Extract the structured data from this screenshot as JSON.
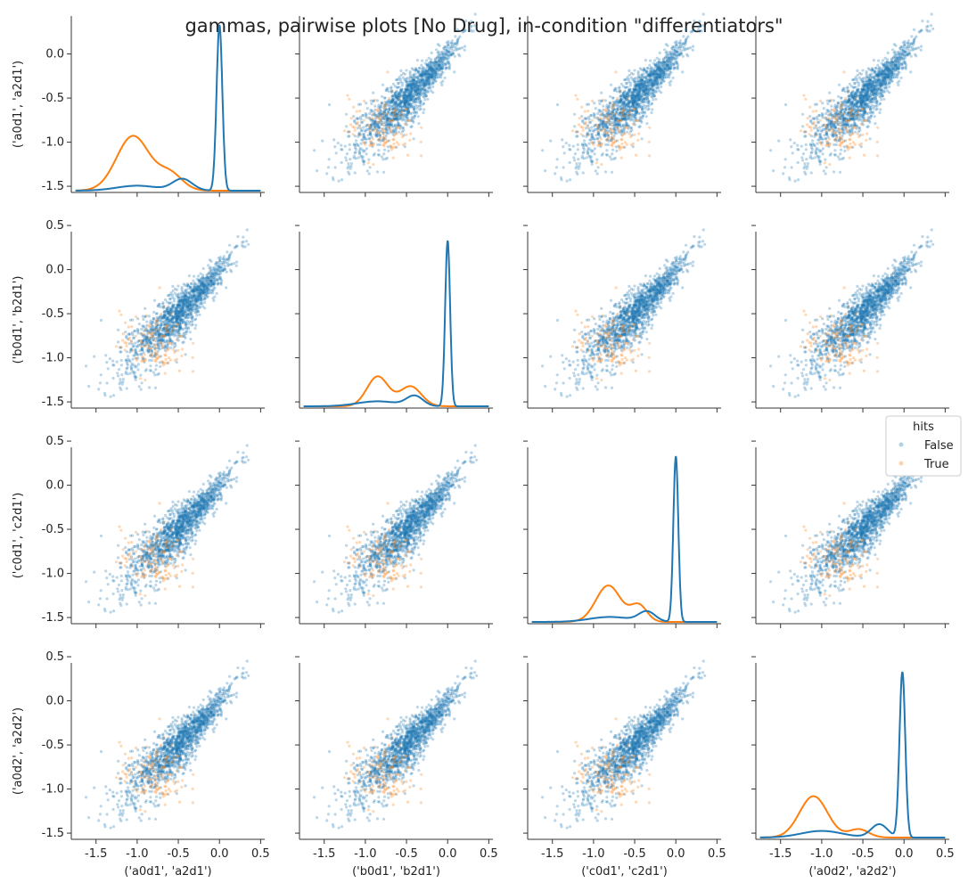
{
  "chart_data": {
    "type": "scatter",
    "title": "gammas, pairwise plots [No Drug], in-condition \"differentiators\"",
    "variables": [
      "('a0d1', 'a2d1')",
      "('b0d1', 'b2d1')",
      "('c0d1', 'c2d1')",
      "('a0d2', 'a2d2')"
    ],
    "xlim": [
      -1.8,
      0.55
    ],
    "ylim": [
      -1.57,
      0.43
    ],
    "x_ticks": [
      "-1.5",
      "-1.0",
      "-0.5",
      "0.0",
      "0.5"
    ],
    "y_ticks_row1": [
      "-1.5",
      "-1.0",
      "-0.5",
      "0.0"
    ],
    "y_ticks_rows": [
      "-1.5",
      "-1.0",
      "-0.5",
      "0.0",
      "0.5"
    ],
    "diagonal": "kde",
    "legend": {
      "title": "hits",
      "placement": "right",
      "entries": [
        {
          "label": "False",
          "color": "#1f77b4"
        },
        {
          "label": "True",
          "color": "#ff7f0e"
        }
      ]
    },
    "series": [
      {
        "name": "False",
        "color": "#1f77b4",
        "approx_points": 6000,
        "center": -0.55,
        "spread": 0.35,
        "max": 0.4
      },
      {
        "name": "True",
        "color": "#ff7f0e",
        "approx_points": 250,
        "center": -0.85,
        "spread": 0.2
      }
    ],
    "kde_peaks": {
      "False": [
        0.0,
        0.0,
        0.0,
        -0.02
      ],
      "True": [
        -1.05,
        -0.82,
        -0.78,
        -1.1
      ]
    },
    "grid": false
  }
}
